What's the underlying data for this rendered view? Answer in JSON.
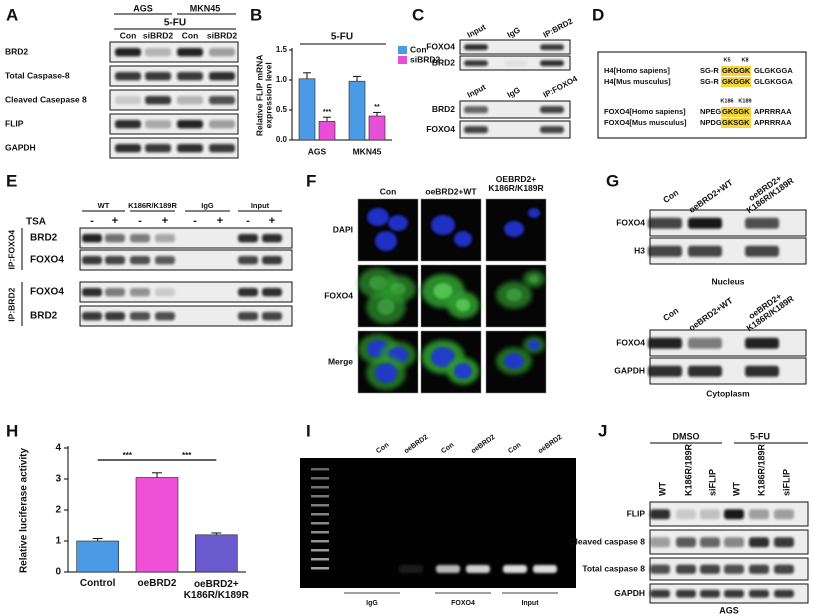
{
  "chart_data": [
    {
      "type": "bar",
      "panel": "B",
      "title": "5-FU",
      "y_label": "Relative FLIP mRNA expression level",
      "categories": [
        "AGS",
        "MKN45"
      ],
      "series": [
        {
          "name": "Con",
          "color": "#4b9ae6",
          "values": [
            1.02,
            0.98
          ],
          "errors": [
            0.1,
            0.08
          ]
        },
        {
          "name": "siBRD2",
          "color": "#e64fd6",
          "values": [
            0.31,
            0.4
          ],
          "errors": [
            0.07,
            0.06
          ]
        }
      ],
      "annotations": [
        "***",
        "**"
      ],
      "ylim": [
        0,
        1.5
      ],
      "yticks": [
        {
          "value": 0,
          "label": "0.0"
        },
        {
          "value": 0.5,
          "label": "0.5"
        },
        {
          "value": 1,
          "label": "1.0"
        },
        {
          "value": 1.5,
          "label": "1.5"
        }
      ],
      "legend": "upper right"
    },
    {
      "type": "bar",
      "panel": "H",
      "y_label": "Relative luciferase activity",
      "categories": [
        "Control",
        "oeBRD2",
        "oeBRD2+ K186R/K189R"
      ],
      "values": [
        1.0,
        3.05,
        1.2
      ],
      "errors": [
        0.08,
        0.15,
        0.06
      ],
      "colors": [
        "#4b9ae6",
        "#f04fd8",
        "#6a5acd"
      ],
      "annotations": [
        "***",
        "***"
      ],
      "ylim": [
        0,
        4
      ],
      "yticks": [
        0,
        1,
        2,
        3,
        4
      ]
    }
  ],
  "panels": {
    "A": {
      "label": "A",
      "groups": [
        "AGS",
        "MKN45"
      ],
      "treatment": "5-FU",
      "lanes": [
        "Con",
        "siBRD2",
        "Con",
        "siBRD2"
      ],
      "rows": [
        "BRD2",
        "Total Caspase-8",
        "Cleaved Casepase 8",
        "FLIP",
        "GAPDH"
      ]
    },
    "C": {
      "label": "C",
      "blots": [
        {
          "lanes": [
            "Input",
            "IgG",
            "IP:BRD2"
          ],
          "rows": [
            "FOXO4",
            "BRD2"
          ]
        },
        {
          "lanes": [
            "Input",
            "IgG",
            "IP:FOXO4"
          ],
          "rows": [
            "BRD2",
            "FOXO4"
          ]
        }
      ]
    },
    "D": {
      "label": "D",
      "groups": [
        {
          "sites": [
            "K5",
            "K8"
          ],
          "sequences": [
            {
              "species": "H4[Homo sapiens]",
              "prefix": "SG-R",
              "motif": "GKGGK",
              "suffix": "GLGKGGA"
            },
            {
              "species": "H4[Mus musculus]",
              "prefix": "SG-R",
              "motif": "GKGGK",
              "suffix": "GLGKGGA"
            }
          ]
        },
        {
          "sites": [
            "K186",
            "K189"
          ],
          "sequences": [
            {
              "species": "FOXO4[Homo sapiens]",
              "prefix": "NPEG",
              "motif": "GKSGK",
              "suffix": "APRRRAA"
            },
            {
              "species": "FOXO4[Mus musculus]",
              "prefix": "NPDG",
              "motif": "GKSGK",
              "suffix": "APRRRAA"
            }
          ]
        }
      ]
    },
    "E": {
      "label": "E",
      "treatment": "TSA",
      "groups": [
        "WT",
        "K186R/K189R",
        "IgG",
        "Input"
      ],
      "signs": [
        "-",
        "+"
      ],
      "ip": [
        {
          "name": "IP:FOXO4",
          "rows": [
            "BRD2",
            "FOXO4"
          ]
        },
        {
          "name": "IP:BRD2",
          "rows": [
            "FOXO4",
            "BRD2"
          ]
        }
      ]
    },
    "F": {
      "label": "F",
      "columns": [
        "Con",
        "oeBRD2+WT",
        "OEBRD2+ K186R/K189R"
      ],
      "rows": [
        "DAPI",
        "FOXO4",
        "Merge"
      ]
    },
    "G": {
      "label": "G",
      "lanes": [
        "Con",
        "oeBRD2+WT",
        "oeBRD2+ K186R/K189R"
      ],
      "blots": [
        {
          "rows": [
            "FOXO4",
            "H3"
          ],
          "caption": "Nucleus"
        },
        {
          "rows": [
            "FOXO4",
            "GAPDH"
          ],
          "caption": "Cytoplasm"
        }
      ]
    },
    "I": {
      "label": "I",
      "lanes": [
        "Con",
        "oeBRD2"
      ],
      "groups": [
        "IgG",
        "FOXO4",
        "Input"
      ]
    },
    "J": {
      "label": "J",
      "conditions": [
        "DMSO",
        "5-FU"
      ],
      "lanes": [
        "WT",
        "K186R/189R",
        "siFLIP"
      ],
      "rows": [
        "FLIP",
        "Cleaved caspase 8",
        "Total caspase 8",
        "GAPDH"
      ],
      "cell_line": "AGS"
    }
  }
}
